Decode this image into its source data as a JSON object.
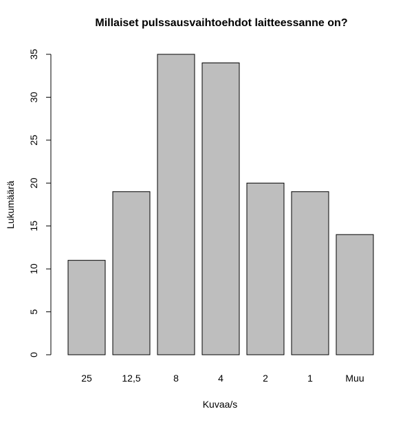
{
  "chart_data": {
    "type": "bar",
    "title": "Millaiset pulssausvaihtoehdot laitteessanne on?",
    "xlabel": "Kuvaa/s",
    "ylabel": "Lukumäärä",
    "categories": [
      "25",
      "12,5",
      "8",
      "4",
      "2",
      "1",
      "Muu"
    ],
    "values": [
      11,
      19,
      35,
      34,
      20,
      19,
      14
    ],
    "ylim": [
      0,
      35
    ],
    "yticks": [
      0,
      5,
      10,
      15,
      20,
      25,
      30,
      35
    ],
    "grid": false,
    "bar_color": "#bebebe",
    "bar_border_color": "#000000"
  }
}
